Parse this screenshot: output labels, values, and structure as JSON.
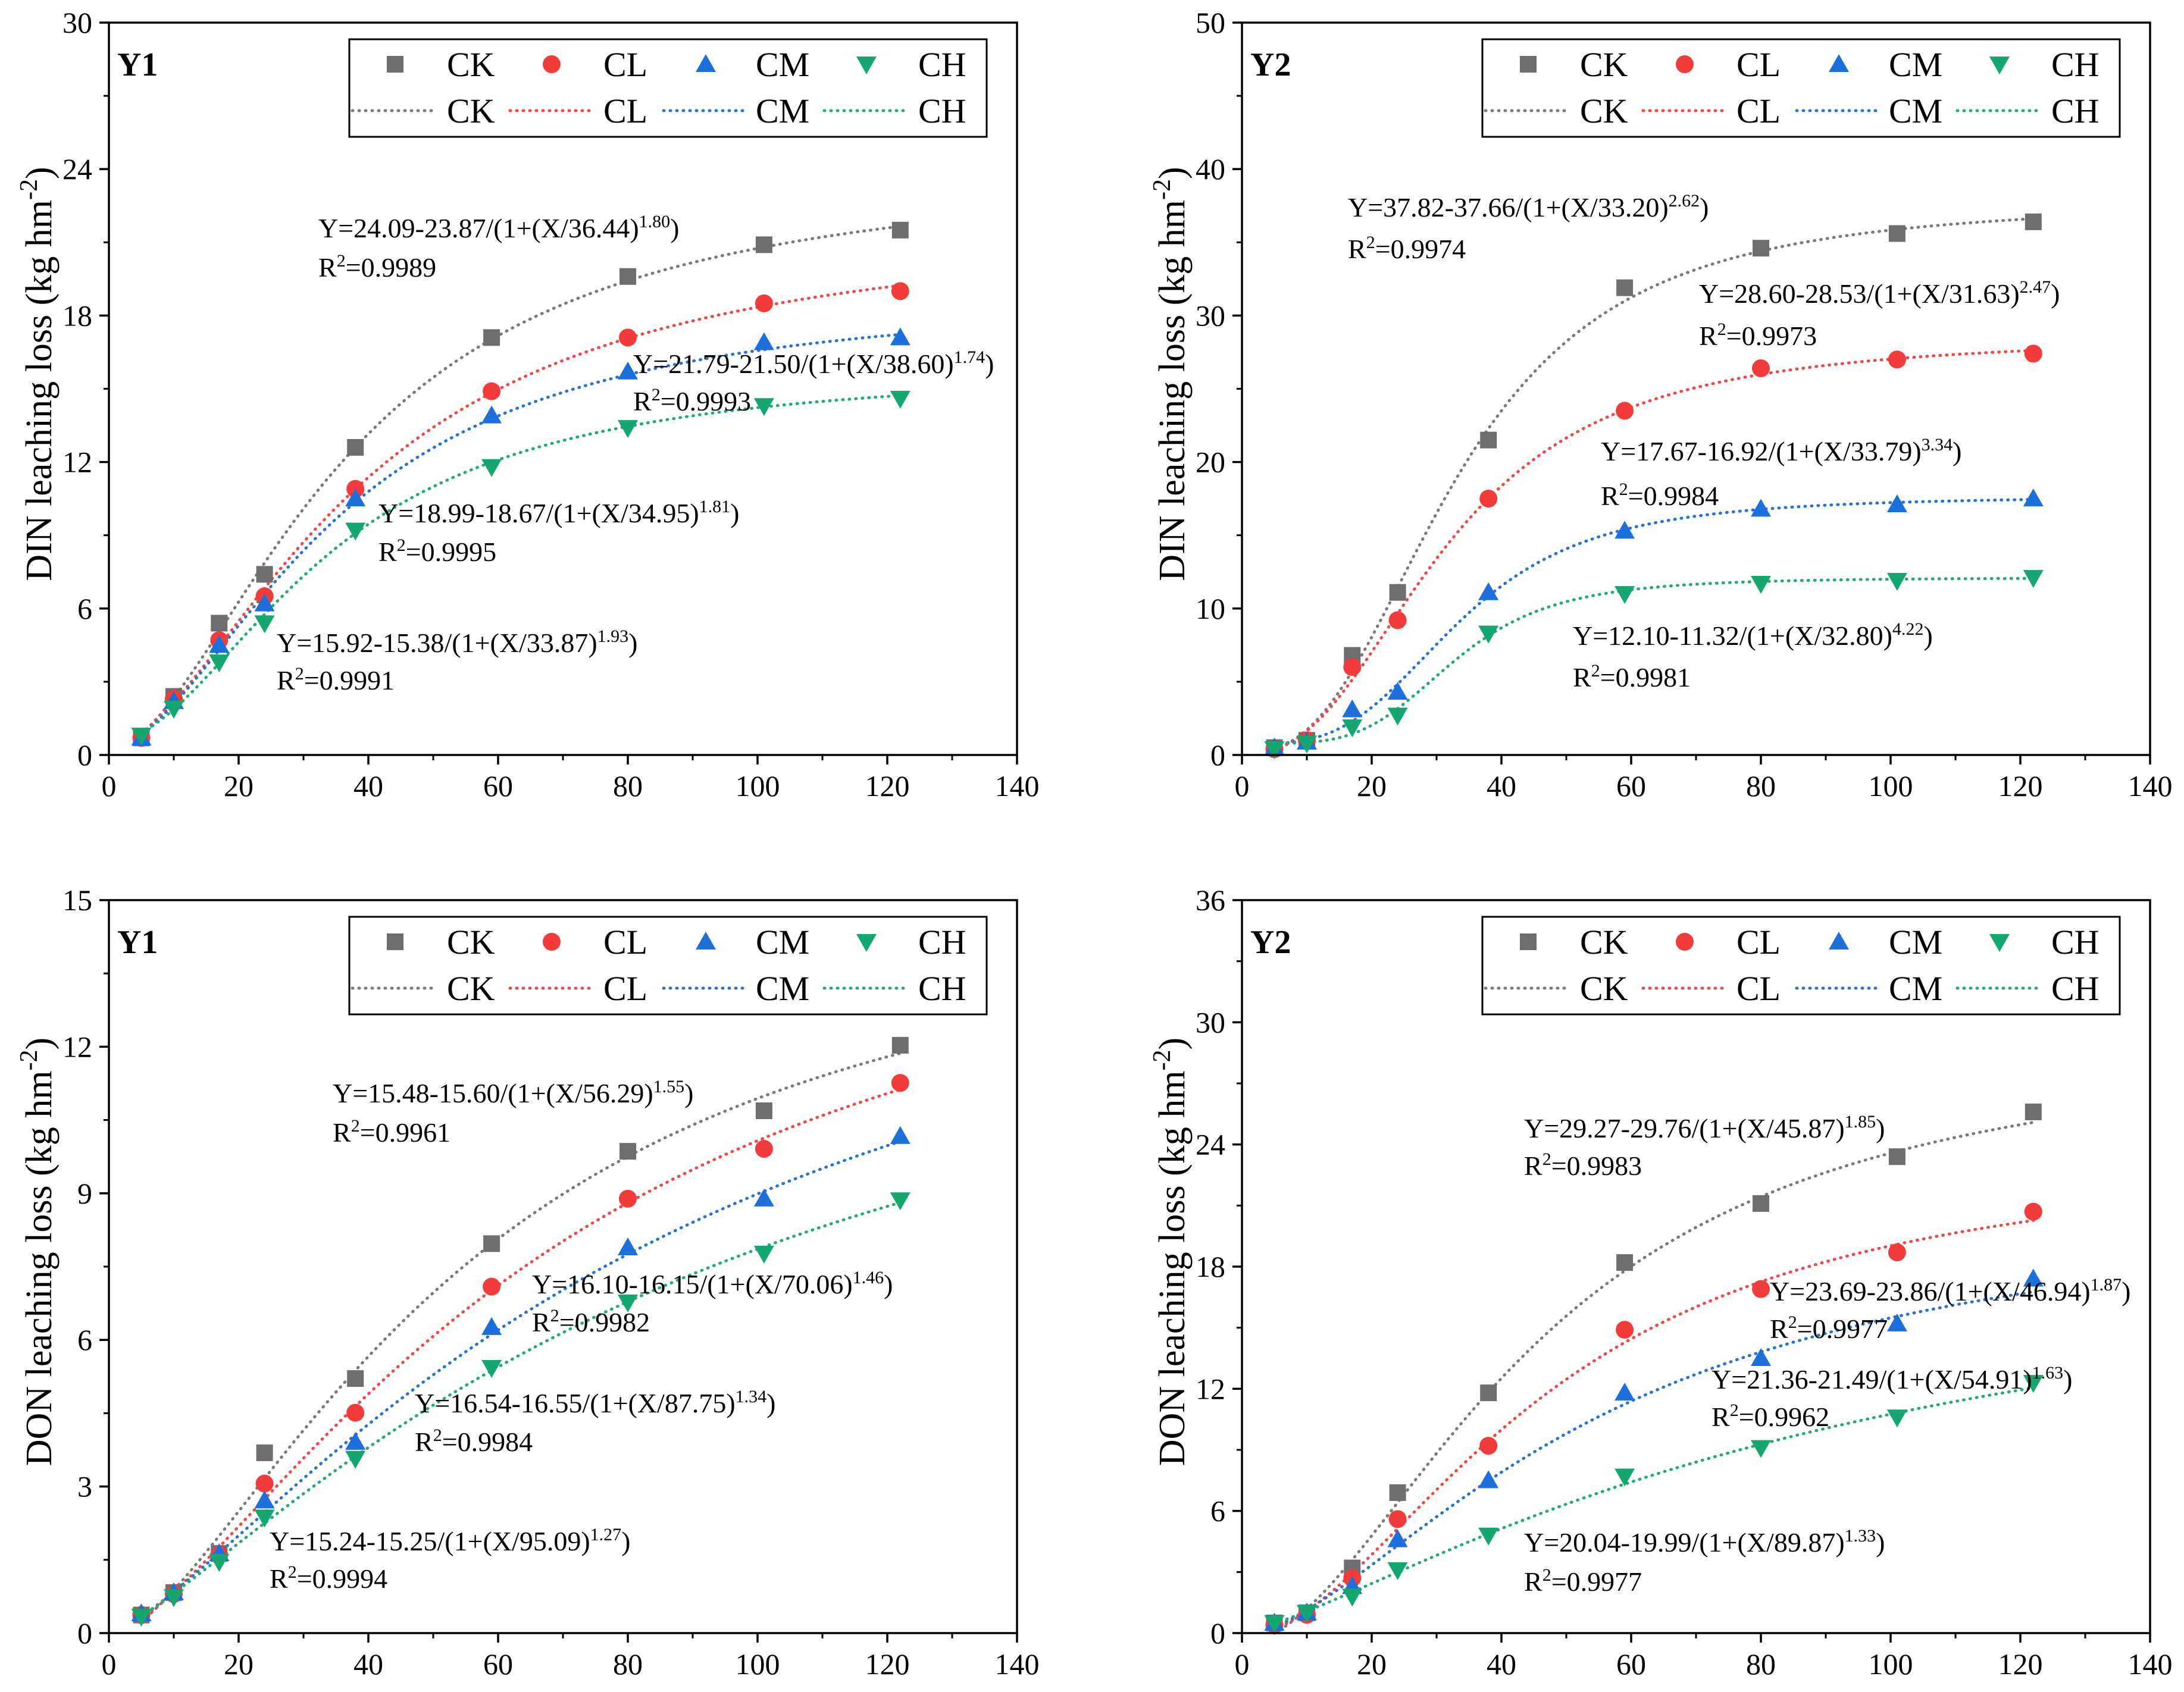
{
  "chart_data": [
    {
      "type": "scatter",
      "panel_label": "Y1",
      "ylabel": [
        "DIN leaching loss (kg hm",
        "-2",
        ")"
      ],
      "xlim": [
        0,
        140
      ],
      "ylim": [
        0,
        30
      ],
      "xticks": [
        0,
        20,
        40,
        60,
        80,
        100,
        120,
        140
      ],
      "yticks": [
        0,
        6,
        12,
        18,
        24,
        30
      ],
      "legend": "top-right",
      "x": [
        5,
        10,
        17,
        24,
        38,
        59,
        80,
        101,
        122
      ],
      "series": [
        {
          "name": "CK",
          "marker": "square",
          "color": "#6e6e6e",
          "line_color": "#7a7a7a",
          "values": [
            0.7,
            2.4,
            5.4,
            7.4,
            12.6,
            17.1,
            19.6,
            20.9,
            21.5
          ],
          "fit": {
            "a": 24.09,
            "b": 23.87,
            "c": 36.44,
            "d": 1.8,
            "equation": [
              "Y=24.09-23.87/(1+(X/36.44)",
              "1.80",
              ")"
            ],
            "r2": [
              "R",
              "2",
              "=0.9989"
            ]
          }
        },
        {
          "name": "CL",
          "marker": "circle",
          "color": "#f23c3c",
          "line_color": "#f04848",
          "values": [
            0.7,
            2.3,
            4.7,
            6.5,
            10.9,
            14.9,
            17.1,
            18.5,
            19.0
          ],
          "fit": {
            "a": 21.79,
            "b": 21.5,
            "c": 38.6,
            "d": 1.74,
            "equation": [
              "Y=21.79-21.50/(1+(X/38.60)",
              "1.74",
              ")"
            ],
            "r2": [
              "R",
              "2",
              "=0.9993"
            ]
          }
        },
        {
          "name": "CM",
          "marker": "triangle-up",
          "color": "#1d6fdc",
          "line_color": "#2a72d0",
          "values": [
            0.7,
            2.2,
            4.5,
            6.2,
            10.5,
            13.9,
            15.7,
            16.9,
            17.1
          ],
          "fit": {
            "a": 18.99,
            "b": 18.67,
            "c": 34.95,
            "d": 1.81,
            "equation": [
              "Y=18.99-18.67/(1+(X/34.95)",
              "1.81",
              ")"
            ],
            "r2": [
              "R",
              "2",
              "=0.9995"
            ]
          }
        },
        {
          "name": "CH",
          "marker": "triangle-down",
          "color": "#16a670",
          "line_color": "#24a87c",
          "values": [
            0.8,
            1.9,
            3.8,
            5.4,
            9.2,
            11.8,
            13.4,
            14.3,
            14.6
          ],
          "fit": {
            "a": 15.92,
            "b": 15.38,
            "c": 33.87,
            "d": 1.93,
            "equation": [
              "Y=15.92-15.38/(1+(X/33.87)",
              "1.93",
              ")"
            ],
            "r2": [
              "R",
              "2",
              "=0.9991"
            ]
          }
        }
      ]
    },
    {
      "type": "scatter",
      "panel_label": "Y2",
      "ylabel": [
        "DIN leaching loss (kg hm",
        "-2",
        ")"
      ],
      "xlim": [
        0,
        140
      ],
      "ylim": [
        0,
        50
      ],
      "xticks": [
        0,
        20,
        40,
        60,
        80,
        100,
        120,
        140
      ],
      "yticks": [
        0,
        10,
        20,
        30,
        40,
        50
      ],
      "legend": "top-right",
      "x": [
        5,
        10,
        17,
        24,
        38,
        59,
        80,
        101,
        122
      ],
      "series": [
        {
          "name": "CK",
          "marker": "square",
          "color": "#6e6e6e",
          "line_color": "#7a7a7a",
          "values": [
            0.5,
            1.0,
            6.8,
            11.1,
            21.5,
            31.9,
            34.6,
            35.6,
            36.4
          ],
          "fit": {
            "a": 37.82,
            "b": 37.66,
            "c": 33.2,
            "d": 2.62,
            "equation": [
              "Y=37.82-37.66/(1+(X/33.20)",
              "2.62",
              ")"
            ],
            "r2": [
              "R",
              "2",
              "=0.9974"
            ]
          }
        },
        {
          "name": "CL",
          "marker": "circle",
          "color": "#f23c3c",
          "line_color": "#f04848",
          "values": [
            0.4,
            1.0,
            6.0,
            9.2,
            17.5,
            23.5,
            26.4,
            27.0,
            27.4
          ],
          "fit": {
            "a": 28.6,
            "b": 28.53,
            "c": 31.63,
            "d": 2.47,
            "equation": [
              "Y=28.60-28.53/(1+(X/31.63)",
              "2.47",
              ")"
            ],
            "r2": [
              "R",
              "2",
              "=0.9973"
            ]
          }
        },
        {
          "name": "CM",
          "marker": "triangle-up",
          "color": "#1d6fdc",
          "line_color": "#2a72d0",
          "values": [
            0.5,
            0.9,
            3.1,
            4.3,
            11.1,
            15.3,
            16.8,
            17.1,
            17.5
          ],
          "fit": {
            "a": 17.67,
            "b": 16.92,
            "c": 33.79,
            "d": 3.34,
            "equation": [
              "Y=17.67-16.92/(1+(X/33.79)",
              "3.34",
              ")"
            ],
            "r2": [
              "R",
              "2",
              "=0.9984"
            ]
          }
        },
        {
          "name": "CH",
          "marker": "triangle-down",
          "color": "#16a670",
          "line_color": "#24a87c",
          "values": [
            0.4,
            0.8,
            1.9,
            2.7,
            8.3,
            11.0,
            11.7,
            11.9,
            12.1
          ],
          "fit": {
            "a": 12.1,
            "b": 11.32,
            "c": 32.8,
            "d": 4.22,
            "equation": [
              "Y=12.10-11.32/(1+(X/32.80)",
              "4.22",
              ")"
            ],
            "r2": [
              "R",
              "2",
              "=0.9981"
            ]
          }
        }
      ]
    },
    {
      "type": "scatter",
      "panel_label": "Y1",
      "ylabel": [
        "DON leaching loss (kg hm",
        "-2",
        ")"
      ],
      "xlim": [
        0,
        140
      ],
      "ylim": [
        0,
        15
      ],
      "xticks": [
        0,
        20,
        40,
        60,
        80,
        100,
        120,
        140
      ],
      "yticks": [
        0,
        3,
        6,
        9,
        12,
        15
      ],
      "legend": "top-right",
      "x": [
        5,
        10,
        17,
        24,
        38,
        59,
        80,
        101,
        122
      ],
      "series": [
        {
          "name": "CK",
          "marker": "square",
          "color": "#6e6e6e",
          "line_color": "#7a7a7a",
          "values": [
            0.37,
            0.83,
            1.63,
            3.69,
            5.21,
            7.97,
            9.86,
            10.69,
            12.03
          ],
          "fit": {
            "a": 15.48,
            "b": 15.6,
            "c": 56.29,
            "d": 1.55,
            "equation": [
              "Y=15.48-15.60/(1+(X/56.29)",
              "1.55",
              ")"
            ],
            "r2": [
              "R",
              "2",
              "=0.9961"
            ]
          }
        },
        {
          "name": "CL",
          "marker": "circle",
          "color": "#f23c3c",
          "line_color": "#f04848",
          "values": [
            0.37,
            0.8,
            1.6,
            3.06,
            4.51,
            7.09,
            8.89,
            9.91,
            11.26
          ],
          "fit": {
            "a": 16.1,
            "b": 16.15,
            "c": 70.06,
            "d": 1.46,
            "equation": [
              "Y=16.10-16.15/(1+(X/70.06)",
              "1.46",
              ")"
            ],
            "r2": [
              "R",
              "2",
              "=0.9982"
            ]
          }
        },
        {
          "name": "CM",
          "marker": "triangle-up",
          "color": "#1d6fdc",
          "line_color": "#2a72d0",
          "values": [
            0.4,
            0.83,
            1.63,
            2.71,
            3.91,
            6.26,
            7.89,
            8.89,
            10.17
          ],
          "fit": {
            "a": 16.54,
            "b": 16.55,
            "c": 87.75,
            "d": 1.34,
            "equation": [
              "Y=16.54-16.55/(1+(X/87.75)",
              "1.34",
              ")"
            ],
            "r2": [
              "R",
              "2",
              "=0.9984"
            ]
          }
        },
        {
          "name": "CH",
          "marker": "triangle-down",
          "color": "#16a670",
          "line_color": "#24a87c",
          "values": [
            0.34,
            0.74,
            1.46,
            2.37,
            3.57,
            5.43,
            6.77,
            7.77,
            8.86
          ],
          "fit": {
            "a": 15.24,
            "b": 15.25,
            "c": 95.09,
            "d": 1.27,
            "equation": [
              "Y=15.24-15.25/(1+(X/95.09)",
              "1.27",
              ")"
            ],
            "r2": [
              "R",
              "2",
              "=0.9994"
            ]
          }
        }
      ]
    },
    {
      "type": "scatter",
      "panel_label": "Y2",
      "ylabel": [
        "DON leaching loss (kg hm",
        "-2",
        ")"
      ],
      "xlim": [
        0,
        140
      ],
      "ylim": [
        0,
        36
      ],
      "xticks": [
        0,
        20,
        40,
        60,
        80,
        100,
        120,
        140
      ],
      "yticks": [
        0,
        6,
        12,
        18,
        24,
        30,
        36
      ],
      "legend": "top-right",
      "x": [
        5,
        10,
        17,
        24,
        38,
        59,
        80,
        101,
        122
      ],
      "series": [
        {
          "name": "CK",
          "marker": "square",
          "color": "#6e6e6e",
          "line_color": "#7a7a7a",
          "values": [
            0.5,
            1.0,
            3.2,
            6.9,
            11.8,
            18.2,
            21.1,
            23.4,
            25.6
          ],
          "fit": {
            "a": 29.27,
            "b": 29.76,
            "c": 45.87,
            "d": 1.85,
            "equation": [
              "Y=29.27-29.76/(1+(X/45.87)",
              "1.85",
              ")"
            ],
            "r2": [
              "R",
              "2",
              "=0.9983"
            ]
          }
        },
        {
          "name": "CL",
          "marker": "circle",
          "color": "#f23c3c",
          "line_color": "#f04848",
          "values": [
            0.4,
            0.9,
            2.7,
            5.6,
            9.2,
            14.9,
            16.9,
            18.7,
            20.7
          ],
          "fit": {
            "a": 23.69,
            "b": 23.86,
            "c": 46.94,
            "d": 1.87,
            "equation": [
              "Y=23.69-23.86/(1+(X/46.94)",
              "1.87",
              ")"
            ],
            "r2": [
              "R",
              "2",
              "=0.9977"
            ]
          }
        },
        {
          "name": "CM",
          "marker": "triangle-up",
          "color": "#1d6fdc",
          "line_color": "#2a72d0",
          "values": [
            0.5,
            1.0,
            2.3,
            4.6,
            7.5,
            11.8,
            13.5,
            15.2,
            17.4
          ],
          "fit": {
            "a": 21.36,
            "b": 21.49,
            "c": 54.91,
            "d": 1.63,
            "equation": [
              "Y=21.36-21.49/(1+(X/54.91)",
              "1.63",
              ")"
            ],
            "r2": [
              "R",
              "2",
              "=0.9962"
            ]
          }
        },
        {
          "name": "CH",
          "marker": "triangle-down",
          "color": "#16a670",
          "line_color": "#24a87c",
          "values": [
            0.5,
            1.0,
            1.8,
            3.1,
            4.8,
            7.7,
            9.1,
            10.6,
            12.3
          ],
          "fit": {
            "a": 20.04,
            "b": 19.99,
            "c": 89.87,
            "d": 1.33,
            "equation": [
              "Y=20.04-19.99/(1+(X/89.87)",
              "1.33",
              ")"
            ],
            "r2": [
              "R",
              "2",
              "=0.9977"
            ]
          }
        }
      ]
    }
  ]
}
